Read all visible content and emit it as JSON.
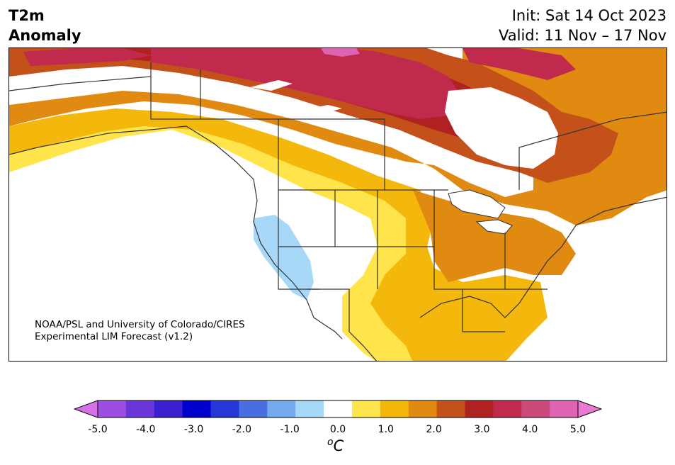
{
  "header": {
    "variable_line1": "T2m",
    "variable_line2": "Anomaly",
    "init_text": "Init: Sat 14 Oct 2023",
    "valid_text": "Valid: 11 Nov – 17 Nov"
  },
  "credit": {
    "line1": "NOAA/PSL and University of Colorado/CIRES",
    "line2": "Experimental LIM Forecast (v1.2)"
  },
  "colorbar": {
    "unit_base": "C",
    "unit_sup": "o",
    "tick_labels": [
      "-5.0",
      "-4.0",
      "-3.0",
      "-2.0",
      "-1.0",
      "0.0",
      "1.0",
      "2.0",
      "3.0",
      "4.0",
      "5.0"
    ],
    "colors": [
      "#d470e8",
      "#9c4ee0",
      "#6a36d8",
      "#3a1fd0",
      "#0000cc",
      "#2437d8",
      "#4a6de0",
      "#74aaee",
      "#a8d8f8",
      "#ffffff",
      "#ffe44c",
      "#f4b80c",
      "#e08a12",
      "#c4501a",
      "#b02222",
      "#c02a4c",
      "#cc4a7a",
      "#dc64b0",
      "#e87ad4"
    ]
  },
  "map": {
    "fill_colors": {
      "far_warm": "#c02a4c",
      "very_warm": "#b02222",
      "warm": "#c4501a",
      "moderate": "#e08a12",
      "mild": "#f4b80c",
      "slight": "#ffe44c",
      "cool": "#a8d8f8",
      "peak": "#dc64b0"
    }
  }
}
